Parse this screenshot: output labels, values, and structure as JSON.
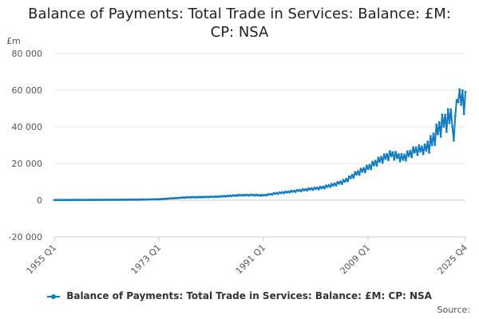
{
  "chart_data": {
    "type": "line",
    "title": "Balance of Payments: Total Trade in Services: Balance: £M: CP: NSA",
    "title_lines": [
      "Balance of Payments: Total Trade in Services: Balance: £M:",
      "CP: NSA"
    ],
    "ylabel": "£m",
    "ylim": [
      -20000,
      80000
    ],
    "yticks": [
      -20000,
      0,
      20000,
      40000,
      60000,
      80000
    ],
    "ytick_labels": [
      "-20 000",
      "0",
      "20 000",
      "40 000",
      "60 000",
      "80 000"
    ],
    "x_start": "1955 Q1",
    "x_end": "2025 Q4",
    "xtick_labels": [
      "1955 Q1",
      "1973 Q1",
      "1991 Q1",
      "2009 Q1",
      "2025 Q4"
    ],
    "grid": true,
    "legend_position": "bottom",
    "series": [
      {
        "name": "Balance of Payments: Total Trade in Services: Balance: £M: CP: NSA",
        "color": "#0f7cc4",
        "annual_anchor_values": [
          [
            "1955",
            100
          ],
          [
            "1960",
            150
          ],
          [
            "1965",
            200
          ],
          [
            "1970",
            300
          ],
          [
            "1973",
            500
          ],
          [
            "1975",
            900
          ],
          [
            "1978",
            1500
          ],
          [
            "1980",
            1600
          ],
          [
            "1983",
            1800
          ],
          [
            "1985",
            2200
          ],
          [
            "1987",
            2600
          ],
          [
            "1989",
            2700
          ],
          [
            "1991",
            2500
          ],
          [
            "1993",
            3500
          ],
          [
            "1995",
            4200
          ],
          [
            "1997",
            5000
          ],
          [
            "1999",
            5800
          ],
          [
            "2001",
            6500
          ],
          [
            "2003",
            8000
          ],
          [
            "2005",
            10000
          ],
          [
            "2007",
            14000
          ],
          [
            "2009",
            17000
          ],
          [
            "2011",
            21000
          ],
          [
            "2013",
            24000
          ],
          [
            "2015",
            22000
          ],
          [
            "2017",
            26000
          ],
          [
            "2019",
            27000
          ],
          [
            "2020",
            30000
          ],
          [
            "2021",
            36000
          ],
          [
            "2022",
            40000
          ],
          [
            "2023",
            42000
          ],
          [
            "2024",
            46000
          ],
          [
            "2025",
            52000
          ]
        ]
      }
    ]
  },
  "legend": {
    "label": "Balance of Payments: Total Trade in Services: Balance: £M: CP: NSA"
  },
  "source": {
    "label": "Source:"
  }
}
